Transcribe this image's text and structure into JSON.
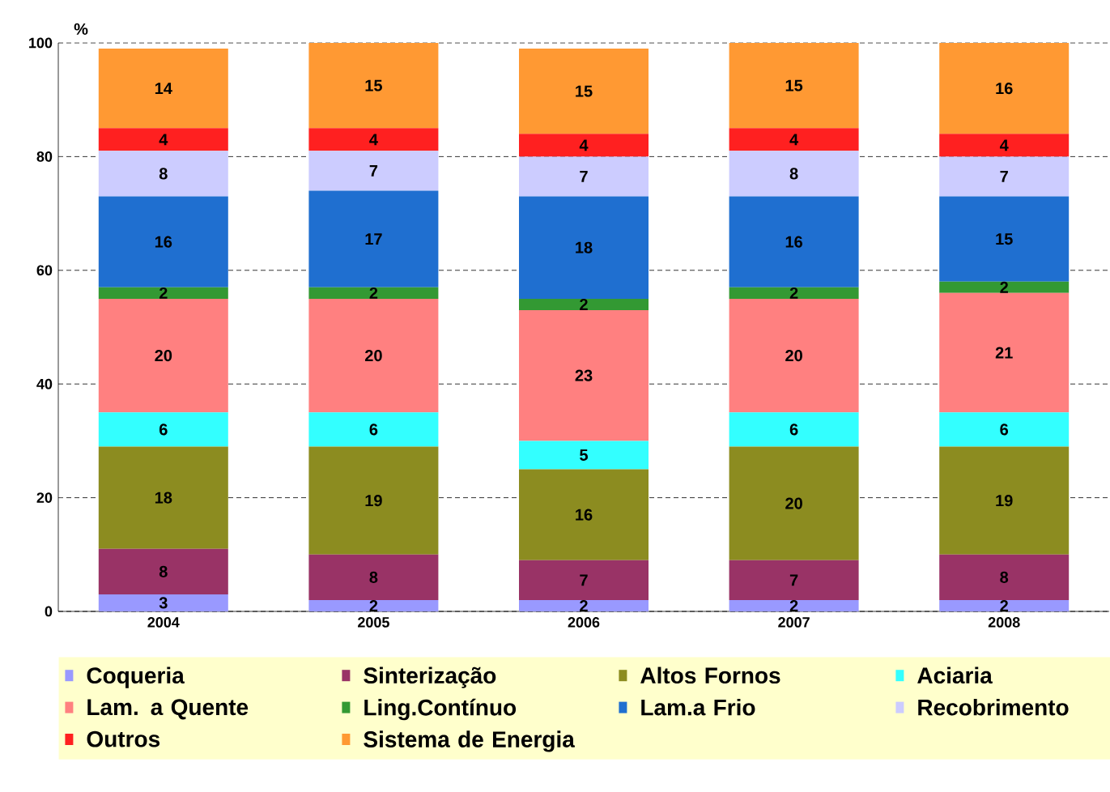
{
  "chart_data": {
    "type": "bar",
    "stacked": true,
    "ylabel": "%",
    "categories": [
      "2004",
      "2005",
      "2006",
      "2007",
      "2008"
    ],
    "series": [
      {
        "name": "Coqueria",
        "color": "#9999ff",
        "values": [
          3,
          2,
          2,
          2,
          2
        ]
      },
      {
        "name": "Sinterização",
        "color": "#993366",
        "values": [
          8,
          8,
          7,
          7,
          8
        ]
      },
      {
        "name": "Altos Fornos",
        "color": "#8c8c20",
        "values": [
          18,
          19,
          16,
          20,
          19
        ]
      },
      {
        "name": "Aciaria",
        "color": "#33ffff",
        "values": [
          6,
          6,
          5,
          6,
          6
        ]
      },
      {
        "name": "Lam. a Quente",
        "color": "#ff8080",
        "values": [
          20,
          20,
          23,
          20,
          21
        ]
      },
      {
        "name": "Ling.Contínuo",
        "color": "#339933",
        "values": [
          2,
          2,
          2,
          2,
          2
        ]
      },
      {
        "name": "Lam.a Frio",
        "color": "#1f6fd0",
        "values": [
          16,
          17,
          18,
          16,
          15
        ]
      },
      {
        "name": "Recobrimento",
        "color": "#ccccff",
        "values": [
          8,
          7,
          7,
          8,
          7
        ]
      },
      {
        "name": "Outros",
        "color": "#ff2020",
        "values": [
          4,
          4,
          4,
          4,
          4
        ]
      },
      {
        "name": "Sistema de Energia",
        "color": "#ff9933",
        "values": [
          14,
          15,
          15,
          15,
          16
        ]
      }
    ],
    "ylim": [
      0,
      100
    ],
    "yticks": [
      0,
      20,
      40,
      60,
      80,
      100
    ],
    "grid": "y",
    "legend": "bottom",
    "data_labels": true
  }
}
